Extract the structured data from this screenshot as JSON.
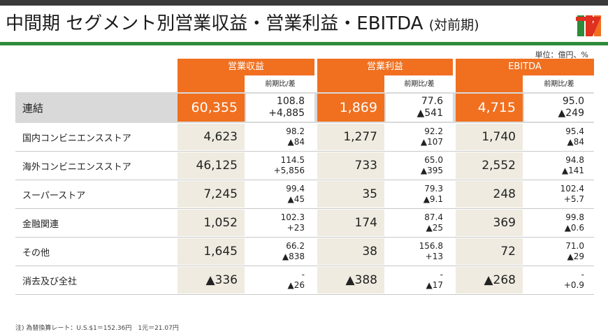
{
  "title": {
    "main": "中間期 セグメント別営業収益・営業利益・EBITDA",
    "sub": "(対前期)"
  },
  "unit": "単位：億円、%",
  "headers": [
    "営業収益",
    "営業利益",
    "EBITDA"
  ],
  "sub_header": "前期比/差",
  "rows": [
    {
      "label": "連結",
      "rev": "60,355",
      "rev_r": "108.8",
      "rev_d": "+4,885",
      "op": "1,869",
      "op_r": "77.6",
      "op_d": "▲541",
      "eb": "4,715",
      "eb_r": "95.0",
      "eb_d": "▲249"
    },
    {
      "label": "国内コンビニエンスストア",
      "rev": "4,623",
      "rev_r": "98.2",
      "rev_d": "▲84",
      "op": "1,277",
      "op_r": "92.2",
      "op_d": "▲107",
      "eb": "1,740",
      "eb_r": "95.4",
      "eb_d": "▲84"
    },
    {
      "label": "海外コンビニエンスストア",
      "rev": "46,125",
      "rev_r": "114.5",
      "rev_d": "+5,856",
      "op": "733",
      "op_r": "65.0",
      "op_d": "▲395",
      "eb": "2,552",
      "eb_r": "94.8",
      "eb_d": "▲141"
    },
    {
      "label": "スーパーストア",
      "rev": "7,245",
      "rev_r": "99.4",
      "rev_d": "▲45",
      "op": "35",
      "op_r": "79.3",
      "op_d": "▲9.1",
      "eb": "248",
      "eb_r": "102.4",
      "eb_d": "+5.7"
    },
    {
      "label": "金融関連",
      "rev": "1,052",
      "rev_r": "102.3",
      "rev_d": "+23",
      "op": "174",
      "op_r": "87.4",
      "op_d": "▲25",
      "eb": "369",
      "eb_r": "99.8",
      "eb_d": "▲0.6"
    },
    {
      "label": "その他",
      "rev": "1,645",
      "rev_r": "66.2",
      "rev_d": "▲838",
      "op": "38",
      "op_r": "156.8",
      "op_d": "+13",
      "eb": "72",
      "eb_r": "71.0",
      "eb_d": "▲29"
    },
    {
      "label": "消去及び全社",
      "rev": "▲336",
      "rev_r": "-",
      "rev_d": "▲26",
      "op": "▲388",
      "op_r": "-",
      "op_d": "▲17",
      "eb": "▲268",
      "eb_r": "-",
      "eb_d": "+0.9"
    }
  ],
  "note": "注) 為替換算レート：U.S.$1＝152.36円　1元＝21.07円",
  "colors": {
    "orange": "#f07020",
    "beige": "#efebe0",
    "green": "#2e8b3a"
  }
}
